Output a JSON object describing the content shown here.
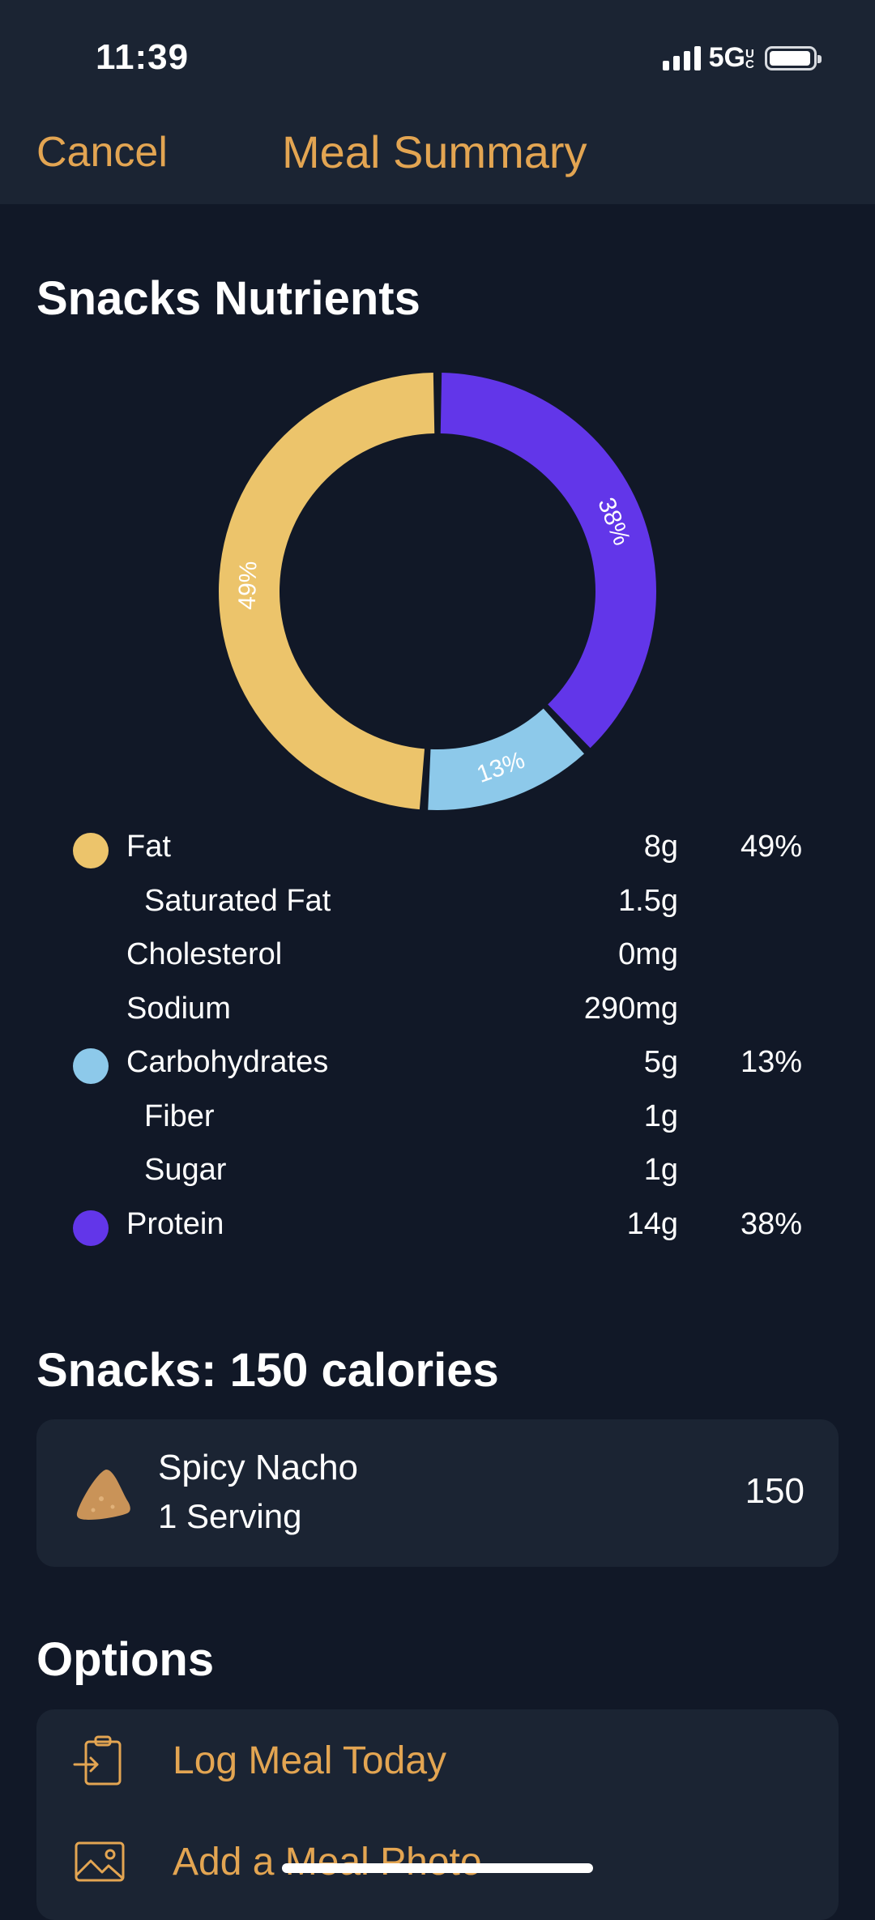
{
  "status_bar": {
    "time": "11:39",
    "network": "5G",
    "network_sup": "UC"
  },
  "nav": {
    "cancel": "Cancel",
    "title": "Meal Summary"
  },
  "nutrients_title": "Snacks Nutrients",
  "chart_data": {
    "type": "pie",
    "categories": [
      "Fat",
      "Carbohydrates",
      "Protein"
    ],
    "values": [
      49,
      13,
      38
    ],
    "labels": [
      "49%",
      "13%",
      "38%"
    ],
    "colors": [
      "#ecc46b",
      "#8dc9ea",
      "#6236e9"
    ]
  },
  "nutrients": [
    {
      "label": "Fat",
      "amount": "8g",
      "percent": "49%",
      "color": "#ecc46b",
      "sub": false
    },
    {
      "label": "Saturated Fat",
      "amount": "1.5g",
      "percent": "",
      "color": "",
      "sub": true
    },
    {
      "label": "Cholesterol",
      "amount": "0mg",
      "percent": "",
      "color": "",
      "sub": false
    },
    {
      "label": "Sodium",
      "amount": "290mg",
      "percent": "",
      "color": "",
      "sub": false
    },
    {
      "label": "Carbohydrates",
      "amount": "5g",
      "percent": "13%",
      "color": "#8dc9ea",
      "sub": false
    },
    {
      "label": "Fiber",
      "amount": "1g",
      "percent": "",
      "color": "",
      "sub": true
    },
    {
      "label": "Sugar",
      "amount": "1g",
      "percent": "",
      "color": "",
      "sub": true
    },
    {
      "label": "Protein",
      "amount": "14g",
      "percent": "38%",
      "color": "#6236e9",
      "sub": false
    }
  ],
  "calories_title": "Snacks: 150 calories",
  "food": {
    "name": "Spicy Nacho",
    "serving": "1 Serving",
    "calories": "150",
    "icon": "nacho-chip-icon"
  },
  "options_title": "Options",
  "options": [
    {
      "label": "Log Meal Today",
      "icon": "clipboard-log-icon"
    },
    {
      "label": "Add a Meal Photo",
      "icon": "photo-icon"
    }
  ],
  "colors": {
    "accent": "#e3a552",
    "background": "#111827",
    "card": "#1b2433"
  }
}
